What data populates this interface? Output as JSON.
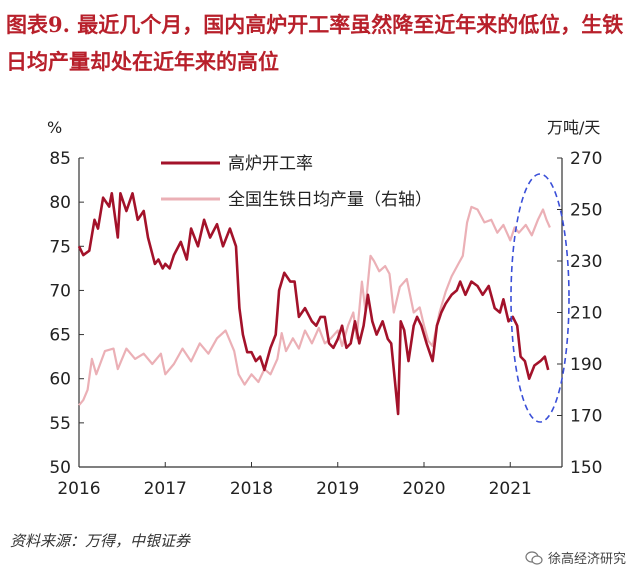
{
  "title": "图表9.  最近几个月，国内高炉开工率虽然降至近年来的低位，生铁日均产量却处在近年来的高位",
  "source": "资料来源：万得，中银证券",
  "watermark": "徐高经济研究",
  "colors": {
    "left_series": "#a3122a",
    "right_series": "#ebb0b6",
    "ellipse": "#3a4fd8"
  },
  "chart_data": {
    "type": "line",
    "left_axis": {
      "label": "%",
      "min": 50,
      "max": 85,
      "ticks": [
        50,
        55,
        60,
        65,
        70,
        75,
        80,
        85
      ]
    },
    "right_axis": {
      "label": "万吨/天",
      "min": 150,
      "max": 270,
      "ticks": [
        150,
        170,
        190,
        210,
        230,
        250,
        270
      ]
    },
    "x_axis": {
      "min": 2016,
      "max": 2021.6,
      "ticks": [
        2016,
        2017,
        2018,
        2019,
        2020,
        2021
      ],
      "tick_labels": [
        "2016",
        "2017",
        "2018",
        "2019",
        "2020",
        "2021"
      ]
    },
    "grid": false,
    "legend_position": "top",
    "highlight": "dashed-ellipse-around-2021",
    "series": [
      {
        "name": "高炉开工率",
        "axis": "left",
        "points": [
          [
            2016.0,
            75
          ],
          [
            2016.05,
            74
          ],
          [
            2016.12,
            74.5
          ],
          [
            2016.18,
            78
          ],
          [
            2016.22,
            77
          ],
          [
            2016.28,
            80.5
          ],
          [
            2016.35,
            79.5
          ],
          [
            2016.38,
            81
          ],
          [
            2016.45,
            76
          ],
          [
            2016.48,
            81
          ],
          [
            2016.55,
            79
          ],
          [
            2016.62,
            81
          ],
          [
            2016.68,
            78
          ],
          [
            2016.75,
            79
          ],
          [
            2016.8,
            76
          ],
          [
            2016.88,
            73
          ],
          [
            2016.92,
            73.5
          ],
          [
            2016.97,
            72.5
          ],
          [
            2017.0,
            73
          ],
          [
            2017.05,
            72.5
          ],
          [
            2017.1,
            74
          ],
          [
            2017.18,
            75.5
          ],
          [
            2017.25,
            73.5
          ],
          [
            2017.3,
            77
          ],
          [
            2017.38,
            75
          ],
          [
            2017.45,
            78
          ],
          [
            2017.52,
            76
          ],
          [
            2017.6,
            77.5
          ],
          [
            2017.67,
            75
          ],
          [
            2017.75,
            77
          ],
          [
            2017.82,
            75
          ],
          [
            2017.86,
            68
          ],
          [
            2017.9,
            65
          ],
          [
            2017.95,
            63
          ],
          [
            2018.0,
            63
          ],
          [
            2018.05,
            62
          ],
          [
            2018.1,
            62.5
          ],
          [
            2018.15,
            61
          ],
          [
            2018.22,
            63.5
          ],
          [
            2018.28,
            65
          ],
          [
            2018.32,
            70
          ],
          [
            2018.38,
            72
          ],
          [
            2018.45,
            71
          ],
          [
            2018.5,
            71
          ],
          [
            2018.55,
            67
          ],
          [
            2018.62,
            68
          ],
          [
            2018.7,
            66.5
          ],
          [
            2018.75,
            66
          ],
          [
            2018.8,
            67
          ],
          [
            2018.85,
            67
          ],
          [
            2018.9,
            64
          ],
          [
            2018.95,
            63.5
          ],
          [
            2019.0,
            64.5
          ],
          [
            2019.05,
            66
          ],
          [
            2019.1,
            63.5
          ],
          [
            2019.15,
            64
          ],
          [
            2019.2,
            66.5
          ],
          [
            2019.25,
            64
          ],
          [
            2019.3,
            66
          ],
          [
            2019.35,
            69.5
          ],
          [
            2019.4,
            66.5
          ],
          [
            2019.45,
            65
          ],
          [
            2019.52,
            66.5
          ],
          [
            2019.58,
            64.5
          ],
          [
            2019.62,
            64
          ],
          [
            2019.66,
            60
          ],
          [
            2019.7,
            56
          ],
          [
            2019.73,
            66.5
          ],
          [
            2019.77,
            65.5
          ],
          [
            2019.82,
            62
          ],
          [
            2019.88,
            66
          ],
          [
            2019.92,
            67
          ],
          [
            2019.97,
            66
          ],
          [
            2020.03,
            64
          ],
          [
            2020.1,
            62
          ],
          [
            2020.15,
            66
          ],
          [
            2020.2,
            67.5
          ],
          [
            2020.25,
            68.5
          ],
          [
            2020.32,
            69.5
          ],
          [
            2020.38,
            70
          ],
          [
            2020.42,
            71
          ],
          [
            2020.48,
            69.5
          ],
          [
            2020.55,
            71
          ],
          [
            2020.62,
            70.5
          ],
          [
            2020.68,
            69.5
          ],
          [
            2020.75,
            70.5
          ],
          [
            2020.82,
            68
          ],
          [
            2020.88,
            67.5
          ],
          [
            2020.92,
            69
          ],
          [
            2020.98,
            66.5
          ],
          [
            2021.03,
            67
          ],
          [
            2021.08,
            66
          ],
          [
            2021.12,
            62.5
          ],
          [
            2021.17,
            62
          ],
          [
            2021.22,
            60
          ],
          [
            2021.28,
            61.5
          ],
          [
            2021.35,
            62
          ],
          [
            2021.4,
            62.5
          ],
          [
            2021.44,
            61
          ]
        ]
      },
      {
        "name": "全国生铁日均产量（右轴）",
        "axis": "right",
        "points": [
          [
            2016.0,
            174
          ],
          [
            2016.05,
            176
          ],
          [
            2016.1,
            180
          ],
          [
            2016.15,
            192
          ],
          [
            2016.2,
            186
          ],
          [
            2016.3,
            195
          ],
          [
            2016.4,
            196
          ],
          [
            2016.45,
            188
          ],
          [
            2016.55,
            196
          ],
          [
            2016.65,
            192
          ],
          [
            2016.75,
            194
          ],
          [
            2016.85,
            190
          ],
          [
            2016.95,
            194
          ],
          [
            2017.0,
            186
          ],
          [
            2017.1,
            190
          ],
          [
            2017.2,
            196
          ],
          [
            2017.3,
            191
          ],
          [
            2017.4,
            198
          ],
          [
            2017.5,
            194
          ],
          [
            2017.6,
            200
          ],
          [
            2017.7,
            203
          ],
          [
            2017.8,
            195
          ],
          [
            2017.85,
            186
          ],
          [
            2017.92,
            182
          ],
          [
            2018.0,
            186
          ],
          [
            2018.08,
            183
          ],
          [
            2018.15,
            188
          ],
          [
            2018.22,
            186
          ],
          [
            2018.3,
            192
          ],
          [
            2018.35,
            202
          ],
          [
            2018.4,
            195
          ],
          [
            2018.48,
            200
          ],
          [
            2018.55,
            196
          ],
          [
            2018.62,
            203
          ],
          [
            2018.7,
            198
          ],
          [
            2018.78,
            204
          ],
          [
            2018.85,
            198
          ],
          [
            2018.92,
            200
          ],
          [
            2019.0,
            203
          ],
          [
            2019.05,
            197
          ],
          [
            2019.12,
            205
          ],
          [
            2019.18,
            210
          ],
          [
            2019.22,
            200
          ],
          [
            2019.28,
            222
          ],
          [
            2019.32,
            211
          ],
          [
            2019.38,
            232
          ],
          [
            2019.42,
            230
          ],
          [
            2019.48,
            226
          ],
          [
            2019.55,
            228
          ],
          [
            2019.6,
            225
          ],
          [
            2019.65,
            210
          ],
          [
            2019.72,
            220
          ],
          [
            2019.8,
            223
          ],
          [
            2019.88,
            210
          ],
          [
            2019.95,
            212
          ],
          [
            2020.0,
            205
          ],
          [
            2020.05,
            199
          ],
          [
            2020.1,
            197
          ],
          [
            2020.18,
            210
          ],
          [
            2020.25,
            218
          ],
          [
            2020.32,
            224
          ],
          [
            2020.4,
            229
          ],
          [
            2020.45,
            232
          ],
          [
            2020.5,
            245
          ],
          [
            2020.55,
            251
          ],
          [
            2020.62,
            250
          ],
          [
            2020.7,
            245
          ],
          [
            2020.78,
            246
          ],
          [
            2020.85,
            241
          ],
          [
            2020.92,
            244
          ],
          [
            2021.0,
            238
          ],
          [
            2021.05,
            243
          ],
          [
            2021.1,
            241
          ],
          [
            2021.18,
            244
          ],
          [
            2021.25,
            240
          ],
          [
            2021.32,
            246
          ],
          [
            2021.38,
            250
          ],
          [
            2021.42,
            246
          ],
          [
            2021.46,
            243
          ]
        ]
      }
    ]
  }
}
